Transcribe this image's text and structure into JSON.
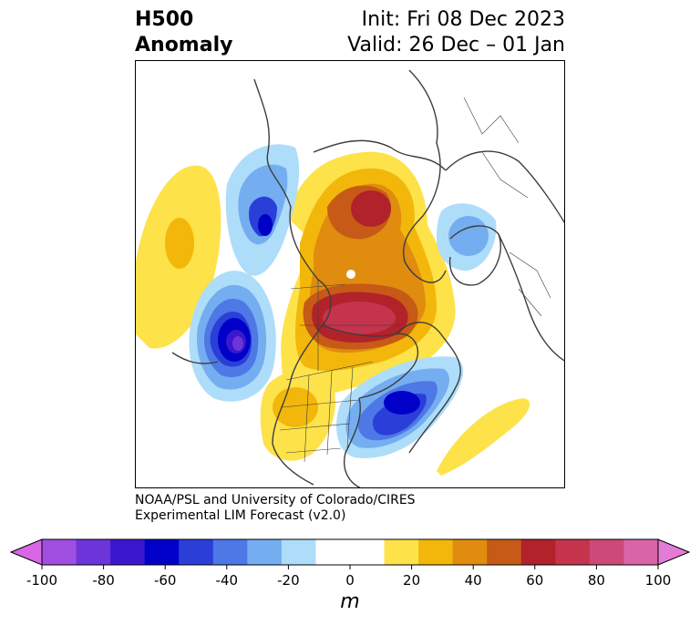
{
  "title": {
    "left_line1": "H500",
    "left_line2": "Anomaly",
    "right_line1": "Init: Fri 08 Dec 2023",
    "right_line2": "Valid: 26 Dec – 01 Jan"
  },
  "credit": {
    "line1": "NOAA/PSL and University of Colorado/CIRES",
    "line2": "Experimental LIM Forecast (v2.0)"
  },
  "colorbar": {
    "unit": "m",
    "ticks": [
      "-100",
      "-80",
      "-60",
      "-40",
      "-20",
      "0",
      "20",
      "40",
      "60",
      "80",
      "100"
    ],
    "colors": [
      "#d966e6",
      "#a04fe0",
      "#6d35d9",
      "#3b17cf",
      "#0000c8",
      "#2a3fd8",
      "#4e78e6",
      "#74aef0",
      "#aeddfa",
      "#ffffff",
      "#ffffff",
      "#fde24a",
      "#f2b70a",
      "#df8c0f",
      "#c65a16",
      "#b2222a",
      "#c4344d",
      "#cc4a78",
      "#d965a8",
      "#e57bd8"
    ]
  },
  "map": {
    "description_features": [
      "North America",
      "North Pole",
      "Greenland",
      "Europe"
    ]
  }
}
